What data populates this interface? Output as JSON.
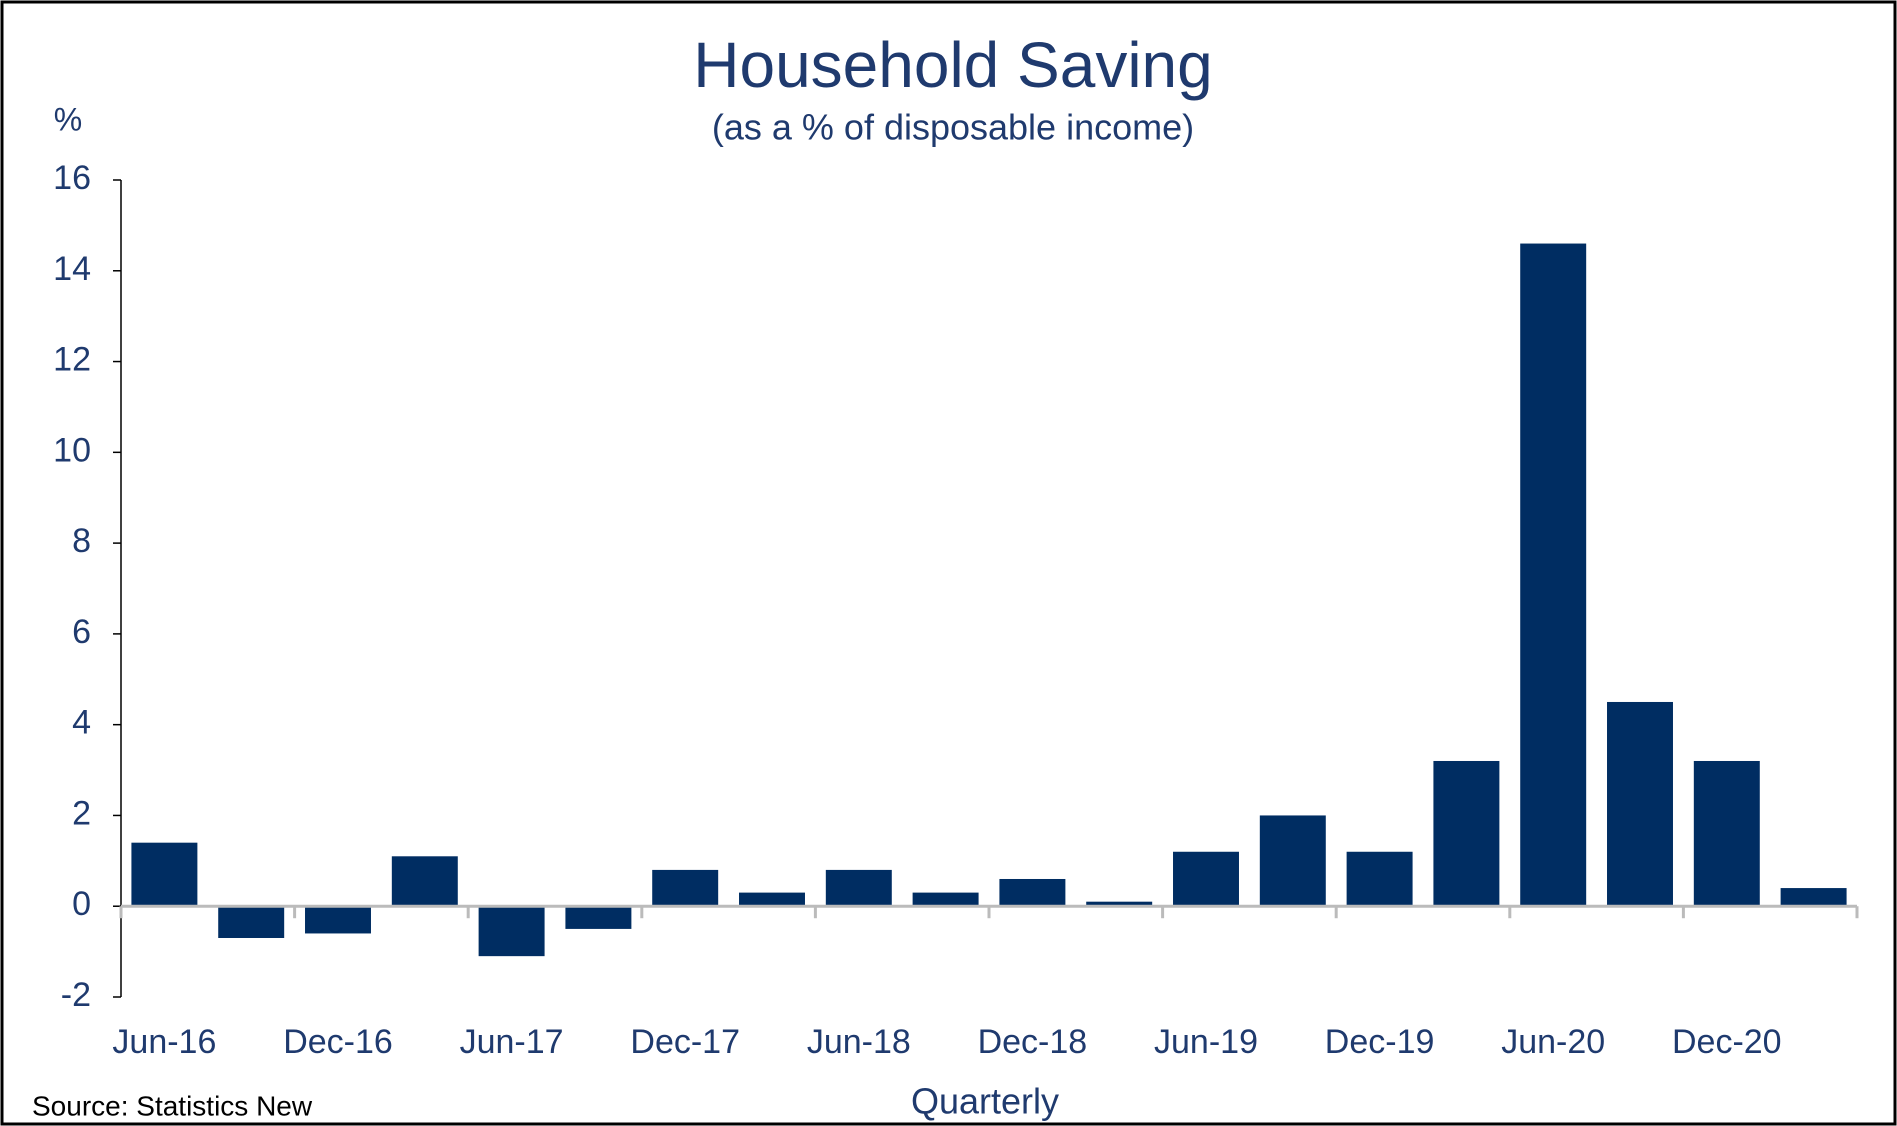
{
  "chart_data": {
    "type": "bar",
    "title": "Household Saving",
    "subtitle": "(as a % of disposable income)",
    "y_unit_label": "%",
    "x_axis_label": "Quarterly",
    "source": "Source: Statistics New",
    "categories": [
      "Jun-16",
      null,
      "Dec-16",
      null,
      "Jun-17",
      null,
      "Dec-17",
      null,
      "Jun-18",
      null,
      "Dec-18",
      null,
      "Jun-19",
      null,
      "Dec-19",
      null,
      "Jun-20",
      null,
      "Dec-20",
      null
    ],
    "values": [
      1.4,
      -0.7,
      -0.6,
      1.1,
      -1.1,
      -0.5,
      0.8,
      0.3,
      0.8,
      0.3,
      0.6,
      0.1,
      1.2,
      2.0,
      1.2,
      3.2,
      14.6,
      4.5,
      3.2,
      0.4
    ],
    "color": "#002d62",
    "ylim": [
      -2,
      16
    ],
    "yticks": [
      -2,
      0,
      2,
      4,
      6,
      8,
      10,
      12,
      14,
      16
    ],
    "grid": false
  }
}
